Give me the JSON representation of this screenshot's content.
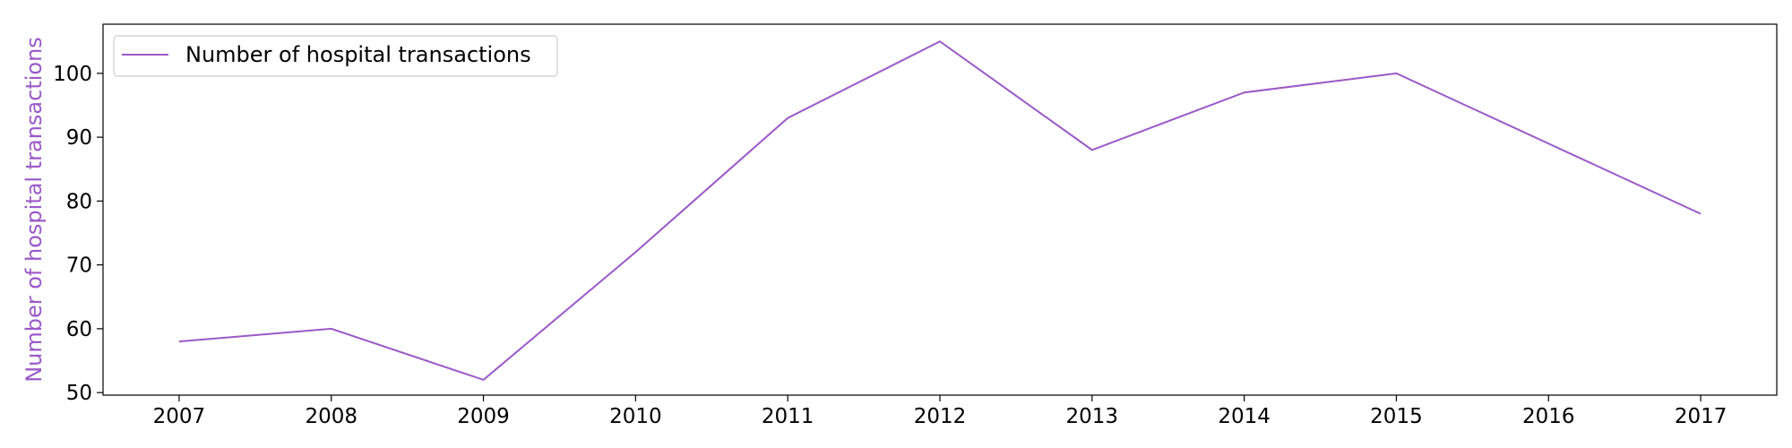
{
  "chart_data": {
    "type": "line",
    "x": [
      2007,
      2008,
      2009,
      2010,
      2011,
      2012,
      2013,
      2014,
      2015,
      2016,
      2017
    ],
    "series": [
      {
        "name": "Number of hospital transactions",
        "values": [
          58,
          60,
          52,
          72,
          93,
          105,
          88,
          97,
          100,
          89,
          78
        ],
        "color": "#9a59c8"
      }
    ],
    "xticks": [
      "2007",
      "2008",
      "2009",
      "2010",
      "2011",
      "2012",
      "2013",
      "2014",
      "2015",
      "2016",
      "2017"
    ],
    "yticks": [
      50,
      60,
      70,
      80,
      90,
      100
    ],
    "xlabel": "",
    "ylabel": "Number of hospital transactions",
    "ylabel_color": "#9a59c8",
    "xlim": [
      2006.5,
      2017.5
    ],
    "ylim": [
      49.6,
      107.7
    ],
    "grid": false,
    "legend_position": "top-left"
  }
}
